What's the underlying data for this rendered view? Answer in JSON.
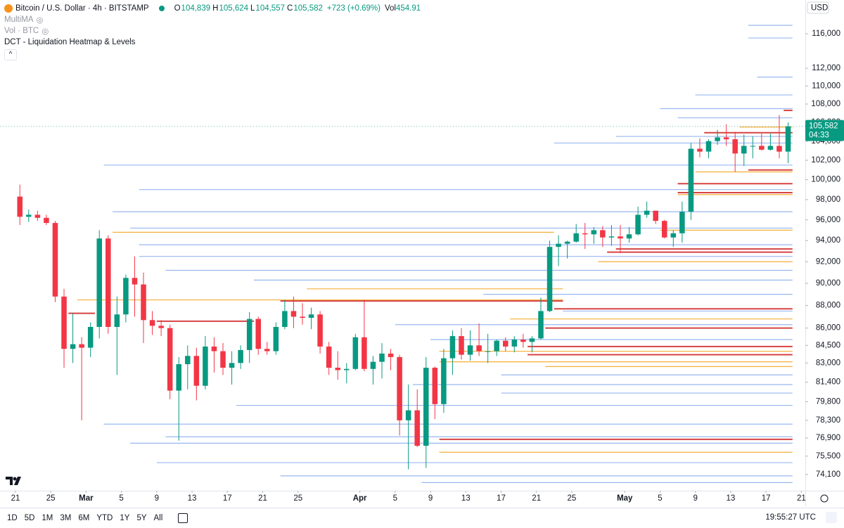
{
  "header": {
    "title": "Bitcoin / U.S. Dollar · 4h · BITSTAMP",
    "ohlc": [
      {
        "label": "O",
        "value": "104,839"
      },
      {
        "label": "H",
        "value": "105,624"
      },
      {
        "label": "L",
        "value": "104,557"
      },
      {
        "label": "C",
        "value": "105,582"
      }
    ],
    "change": "+723 (+0.69%)",
    "volume_label": "Vol",
    "volume": "454.91",
    "indicators": [
      "MultiMA",
      "Vol · BTC",
      "DCT - Liquidation Heatmap & Levels"
    ],
    "currency": "USD"
  },
  "chart_data": {
    "type": "candlestick",
    "log_scale": true,
    "up_color": "#089981",
    "down_color": "#f23645",
    "ylim": [
      72890,
      120050
    ],
    "xlim": [
      -1.75,
      89.45
    ],
    "yticks": [
      {
        "value": 116000,
        "label": "116,000"
      },
      {
        "value": 112000,
        "label": "112,000"
      },
      {
        "value": 110000,
        "label": "110,000"
      },
      {
        "value": 108000,
        "label": "108,000"
      },
      {
        "value": 106000,
        "label": "106,000"
      },
      {
        "value": 104000,
        "label": "104,000"
      },
      {
        "value": 102000,
        "label": "102,000"
      },
      {
        "value": 100000,
        "label": "100,000"
      },
      {
        "value": 98000,
        "label": "98,000"
      },
      {
        "value": 96000,
        "label": "96,000"
      },
      {
        "value": 94000,
        "label": "94,000"
      },
      {
        "value": 92000,
        "label": "92,000"
      },
      {
        "value": 90000,
        "label": "90,000"
      },
      {
        "value": 88000,
        "label": "88,000"
      },
      {
        "value": 86000,
        "label": "86,000"
      },
      {
        "value": 84500,
        "label": "84,500"
      },
      {
        "value": 83000,
        "label": "83,000"
      },
      {
        "value": 81400,
        "label": "81,400"
      },
      {
        "value": 79800,
        "label": "79,800"
      },
      {
        "value": 78300,
        "label": "78,300"
      },
      {
        "value": 76900,
        "label": "76,900"
      },
      {
        "value": 75500,
        "label": "75,500"
      },
      {
        "value": 74100,
        "label": "74,100"
      }
    ],
    "xticks": [
      {
        "value": 0,
        "label": "21"
      },
      {
        "value": 4,
        "label": "25"
      },
      {
        "value": 8,
        "label": "Mar"
      },
      {
        "value": 12,
        "label": "5"
      },
      {
        "value": 16,
        "label": "9"
      },
      {
        "value": 20,
        "label": "13"
      },
      {
        "value": 24,
        "label": "17"
      },
      {
        "value": 28,
        "label": "21"
      },
      {
        "value": 32,
        "label": "25"
      },
      {
        "value": 39,
        "label": "Apr"
      },
      {
        "value": 43,
        "label": "5"
      },
      {
        "value": 47,
        "label": "9"
      },
      {
        "value": 51,
        "label": "13"
      },
      {
        "value": 55,
        "label": "17"
      },
      {
        "value": 59,
        "label": "21"
      },
      {
        "value": 63,
        "label": "25"
      },
      {
        "value": 69,
        "label": "May"
      },
      {
        "value": 73,
        "label": "5"
      },
      {
        "value": 77,
        "label": "9"
      },
      {
        "value": 81,
        "label": "13"
      },
      {
        "value": 85,
        "label": "17"
      },
      {
        "value": 89,
        "label": "21"
      }
    ],
    "x": [
      0,
      1,
      2,
      3,
      4,
      5,
      6,
      7,
      8,
      9,
      10,
      11,
      12,
      13,
      14,
      15,
      16,
      17,
      18,
      19,
      20,
      21,
      22,
      23,
      24,
      25,
      26,
      27,
      28,
      29,
      30,
      31,
      32,
      33,
      34,
      35,
      36,
      37,
      38,
      39,
      40,
      41,
      42,
      43,
      44,
      45,
      46,
      47,
      48,
      49,
      50,
      51,
      52,
      53,
      54,
      55,
      56,
      57,
      58,
      59,
      60,
      61,
      62,
      63,
      64,
      65,
      66,
      67,
      68,
      69,
      70,
      71,
      72,
      73,
      74,
      75,
      76,
      77,
      78,
      79,
      80,
      81,
      82,
      83,
      84,
      85,
      86,
      87
    ],
    "open": [
      98300,
      96300,
      96500,
      96200,
      95700,
      88800,
      84200,
      84600,
      84300,
      86100,
      94200,
      86100,
      87200,
      90500,
      89900,
      86700,
      86200,
      86000,
      80700,
      82900,
      83600,
      81100,
      84400,
      84000,
      82600,
      83000,
      84100,
      86800,
      84200,
      84000,
      86100,
      87500,
      87000,
      86900,
      87200,
      84400,
      82600,
      82400,
      82500,
      85200,
      82500,
      83100,
      83800,
      83500,
      78300,
      79100,
      76300,
      82600,
      79600,
      83400,
      85300,
      83700,
      84500,
      84000,
      84000,
      84900,
      84400,
      85000,
      84800,
      85100,
      87500,
      93400,
      93700,
      93900,
      94700,
      94600,
      95000,
      94300,
      94400,
      94200,
      94600,
      96500,
      96900,
      95900,
      94300,
      94700,
      96800,
      103200,
      102900,
      104000,
      104400,
      104200,
      102700,
      103500,
      103500,
      103100,
      103500,
      102900
    ],
    "high": [
      99500,
      97000,
      96900,
      96500,
      95900,
      89500,
      87300,
      85200,
      86500,
      95000,
      94500,
      88800,
      90800,
      92500,
      91000,
      87500,
      86700,
      86300,
      83500,
      84500,
      84300,
      85300,
      85200,
      84700,
      84000,
      84500,
      87400,
      87000,
      84800,
      86500,
      88500,
      88800,
      88200,
      87800,
      87500,
      84800,
      84000,
      83000,
      85500,
      88500,
      83600,
      84700,
      84200,
      83700,
      81200,
      80800,
      83500,
      82700,
      84200,
      85800,
      86000,
      85800,
      86400,
      85500,
      85000,
      85200,
      85300,
      85500,
      85300,
      88700,
      94000,
      94500,
      94000,
      95600,
      95700,
      95300,
      95400,
      95500,
      95500,
      95300,
      97300,
      97800,
      96900,
      96000,
      95000,
      97800,
      103800,
      104300,
      104200,
      105200,
      105800,
      105000,
      104700,
      104500,
      104800,
      104800,
      106800,
      106000
    ],
    "low": [
      95500,
      95800,
      95900,
      95500,
      88300,
      82600,
      83000,
      78300,
      83500,
      85100,
      85500,
      82000,
      86500,
      87000,
      84700,
      85400,
      85300,
      80000,
      76700,
      80800,
      79900,
      80800,
      82200,
      82000,
      81200,
      82500,
      83000,
      83700,
      83700,
      83700,
      85900,
      86000,
      86300,
      85900,
      83800,
      82000,
      81600,
      81300,
      82400,
      82300,
      81200,
      81700,
      82400,
      77100,
      74500,
      76200,
      74600,
      78400,
      78900,
      82000,
      83300,
      83200,
      83600,
      83000,
      83600,
      84000,
      83900,
      84300,
      83900,
      85000,
      87400,
      91600,
      92300,
      93800,
      93200,
      93700,
      93400,
      93500,
      92800,
      93800,
      94500,
      96200,
      95600,
      94200,
      93400,
      93800,
      96000,
      102300,
      102200,
      103600,
      103500,
      100800,
      101400,
      102200,
      103000,
      103000,
      102200,
      101700
    ],
    "close": [
      96300,
      96500,
      96200,
      95700,
      88800,
      84200,
      84600,
      84300,
      86100,
      94200,
      86100,
      87200,
      90500,
      89900,
      86700,
      86200,
      86000,
      80700,
      82900,
      83600,
      81100,
      84400,
      84000,
      82600,
      83000,
      84100,
      86800,
      84200,
      84000,
      86100,
      87500,
      87000,
      86900,
      87200,
      84400,
      82600,
      82400,
      82500,
      85200,
      82500,
      83100,
      83800,
      83500,
      78300,
      79100,
      76300,
      82600,
      79600,
      83400,
      85300,
      83700,
      84500,
      84000,
      84000,
      84900,
      84400,
      85000,
      84800,
      85100,
      87500,
      93400,
      93700,
      93900,
      94700,
      94600,
      95000,
      94300,
      94400,
      94200,
      94600,
      96500,
      96900,
      95900,
      94300,
      94700,
      96800,
      103200,
      102900,
      104000,
      104400,
      104200,
      102700,
      103500,
      103500,
      103100,
      103500,
      102900,
      105582
    ],
    "last_label": "105,582",
    "countdown": "04:33",
    "heatmap": [
      {
        "color": "#7fa6ee",
        "prices": [
          117000,
          115500,
          111000,
          109000,
          107500,
          106500,
          104500,
          103800,
          101500,
          99000,
          96800,
          95200,
          93600,
          92500,
          91200,
          90300,
          89000,
          87500,
          86300,
          85000,
          82000,
          81200,
          80500,
          79500,
          78000,
          77000,
          76500,
          75000,
          74000,
          73500
        ],
        "from": [
          83,
          83,
          84,
          77,
          73,
          75,
          68,
          61,
          10,
          14,
          11,
          13,
          14,
          14,
          17,
          27,
          53,
          62,
          43,
          47,
          55,
          45,
          55,
          25,
          10,
          17,
          13,
          16,
          30,
          46
        ],
        "to": [
          88,
          88,
          88,
          88,
          88,
          88,
          88,
          88,
          88,
          88,
          88,
          88,
          88,
          88,
          88,
          88,
          88,
          88,
          88,
          88,
          88,
          88,
          88,
          88,
          88,
          88,
          88,
          88,
          88,
          88
        ]
      },
      {
        "color": "#f5a623",
        "prices": [
          105500,
          100800,
          98500,
          95000,
          94800,
          92000,
          89500,
          88500,
          86800,
          84000,
          83100,
          82700,
          75800
        ],
        "from": [
          82,
          77,
          75,
          73,
          11,
          66,
          33,
          7,
          56,
          48,
          48,
          60,
          48
        ],
        "to": [
          88,
          88,
          88,
          88,
          61,
          88,
          62,
          62,
          88,
          88,
          88,
          88,
          88
        ]
      },
      {
        "color": "#d32f2f",
        "prices": [
          107300,
          104900,
          101000,
          99600,
          98700,
          93200,
          92900,
          88400,
          87700,
          86600,
          86000,
          84400,
          83700,
          76800,
          87300
        ],
        "from": [
          87,
          78,
          83,
          75,
          75,
          68,
          67,
          30,
          61,
          16,
          60,
          58,
          58,
          48,
          6
        ],
        "to": [
          88,
          88,
          88,
          88,
          88,
          88,
          88,
          62,
          88,
          27,
          88,
          88,
          88,
          88,
          9
        ]
      }
    ]
  },
  "toolbar": {
    "ranges": [
      "1D",
      "5D",
      "1M",
      "3M",
      "6M",
      "YTD",
      "1Y",
      "5Y",
      "All"
    ],
    "clock": "19:55:27 UTC"
  }
}
